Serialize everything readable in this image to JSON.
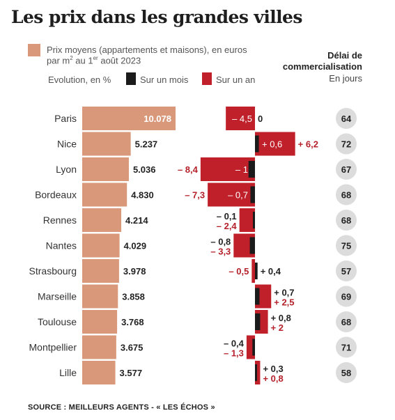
{
  "title": "Les prix dans les grandes villes",
  "legend": {
    "price_line1": "Prix moyens (appartements et maisons), en euros",
    "price_line2_pre": "par m",
    "price_line2_sup": "2",
    "price_line2_mid": " au 1",
    "price_line2_sup2": "er",
    "price_line2_post": " août 2023",
    "evolution_label": "Evolution, en %",
    "month_label": "Sur un mois",
    "year_label": "Sur un an"
  },
  "delay_header": {
    "line1": "Délai de",
    "line2": "commercialisation",
    "line3": "En jours"
  },
  "source": "SOURCE : MEILLEURS AGENTS - « LES ÉCHOS »",
  "colors": {
    "price_bar": "#d9987a",
    "month": "#1b1b1b",
    "year": "#c0202a",
    "year_text": "#b5202a",
    "delay_circle": "#dcdcdc"
  },
  "chart_data": {
    "type": "bar",
    "categories": [
      "Paris",
      "Nice",
      "Lyon",
      "Bordeaux",
      "Rennes",
      "Nantes",
      "Strasbourg",
      "Marseille",
      "Toulouse",
      "Montpellier",
      "Lille"
    ],
    "series": [
      {
        "name": "Prix moyens (appartements et maisons), en euros par m2 au 1er août 2023",
        "values": [
          10078,
          5237,
          5036,
          4830,
          4214,
          4029,
          3978,
          3858,
          3768,
          3675,
          3577
        ],
        "labels": [
          "10.078",
          "5.237",
          "5.036",
          "4.830",
          "4.214",
          "4.029",
          "3.978",
          "3.858",
          "3.768",
          "3.675",
          "3.577"
        ]
      },
      {
        "name": "Sur un mois",
        "values": [
          0,
          0.6,
          -1,
          -0.7,
          -0.1,
          -0.8,
          0.4,
          0.7,
          0.8,
          -0.4,
          0.3
        ],
        "labels": [
          "0",
          "+ 0,6",
          "– 1",
          "– 0,7",
          "– 0,1",
          "– 0,8",
          "+ 0,4",
          "+ 0,7",
          "+ 0,8",
          "– 0,4",
          "+ 0,3"
        ]
      },
      {
        "name": "Sur un an",
        "values": [
          -4.5,
          6.2,
          -8.4,
          -7.3,
          -2.4,
          -3.3,
          -0.5,
          2.5,
          2,
          -1.3,
          0.8
        ],
        "labels": [
          "– 4,5",
          "+ 6,2",
          "– 8,4",
          "– 7,3",
          "– 2,4",
          "– 3,3",
          "– 0,5",
          "+ 2,5",
          "+ 2",
          "– 1,3",
          "+ 0,8"
        ]
      },
      {
        "name": "Délai de commercialisation",
        "values": [
          64,
          72,
          67,
          68,
          68,
          75,
          57,
          69,
          68,
          71,
          58
        ],
        "labels": [
          "64",
          "72",
          "67",
          "68",
          "68",
          "75",
          "57",
          "69",
          "68",
          "71",
          "58"
        ]
      }
    ]
  }
}
